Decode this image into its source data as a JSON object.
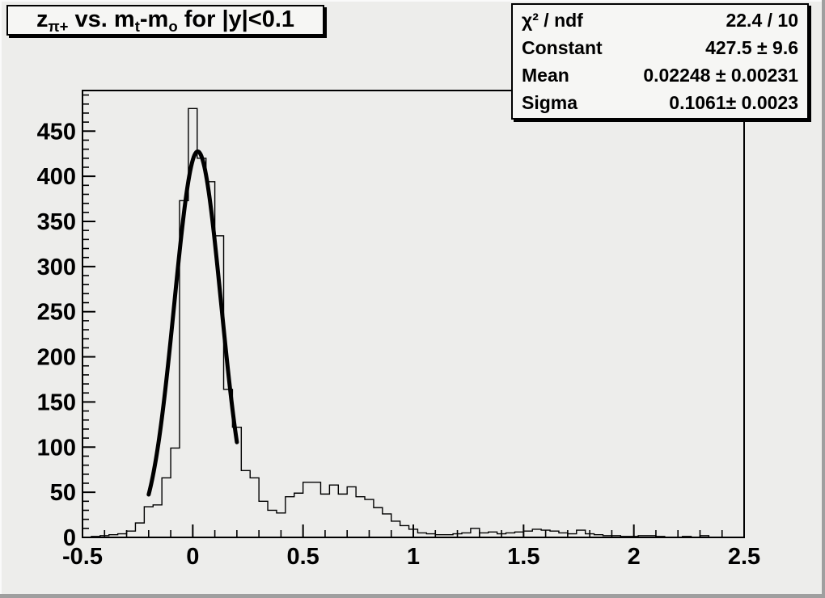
{
  "window": {
    "background": "#ededeb",
    "bevel_dark": "#9f9f9f",
    "bevel_light": "#fafafa",
    "pave_background": "#f6f6f4",
    "line_color": "#000000"
  },
  "title_box": {
    "parts": [
      {
        "text": "z"
      },
      {
        "text": "π+",
        "sub": true
      },
      {
        "text": " vs. m"
      },
      {
        "text": "t",
        "sub": true
      },
      {
        "text": "-m"
      },
      {
        "text": "o",
        "sub": true
      },
      {
        "text": " for |y|<0.1"
      }
    ]
  },
  "stats_box": {
    "rows": [
      {
        "label": "χ² / ndf",
        "value": "22.4 / 10"
      },
      {
        "label": "Constant",
        "value": "427.5 ± 9.6"
      },
      {
        "label": "Mean",
        "value": "0.02248 ± 0.00231"
      },
      {
        "label": "Sigma",
        "value": "0.1061± 0.0023"
      }
    ]
  },
  "chart_data": {
    "type": "bar",
    "subtype": "root-histogram-with-gaussian-fit",
    "title": "z_{π+} vs. m_{t}-m_{o} for |y|<0.1",
    "xlabel": "",
    "ylabel": "",
    "x_axis": {
      "min": -0.5,
      "max": 2.5,
      "major_tick_step": 0.5,
      "minor_tick_step": 0.1,
      "tick_labels": [
        "-0.5",
        "0",
        "0.5",
        "1",
        "1.5",
        "2",
        "2.5"
      ]
    },
    "y_axis": {
      "min": 0,
      "max": 495,
      "major_tick_step": 50,
      "minor_tick_step": 10,
      "tick_labels": [
        "0",
        "50",
        "100",
        "150",
        "200",
        "250",
        "300",
        "350",
        "400",
        "450"
      ]
    },
    "grid": false,
    "bins": {
      "start": -0.5,
      "width": 0.04,
      "values": [
        0,
        1,
        2,
        3,
        4,
        7,
        16,
        34,
        36,
        66,
        99,
        373,
        475,
        420,
        394,
        334,
        164,
        122,
        74,
        66,
        40,
        30,
        27,
        45,
        49,
        61,
        61,
        48,
        58,
        48,
        56,
        45,
        42,
        33,
        26,
        18,
        13,
        9,
        5,
        4,
        3,
        3,
        4,
        5,
        10,
        5,
        6,
        4,
        5,
        6,
        7,
        9,
        8,
        7,
        5,
        4,
        8,
        4,
        3,
        2,
        2,
        1,
        1,
        2,
        2,
        1,
        0,
        0,
        1,
        0,
        2,
        0,
        0,
        0,
        0
      ]
    },
    "fit": {
      "type": "gaussian",
      "chi2": 22.4,
      "ndf": 10,
      "constant": 427.5,
      "mean": 0.02248,
      "sigma": 0.1061,
      "draw_range": [
        -0.2,
        0.2
      ]
    }
  }
}
